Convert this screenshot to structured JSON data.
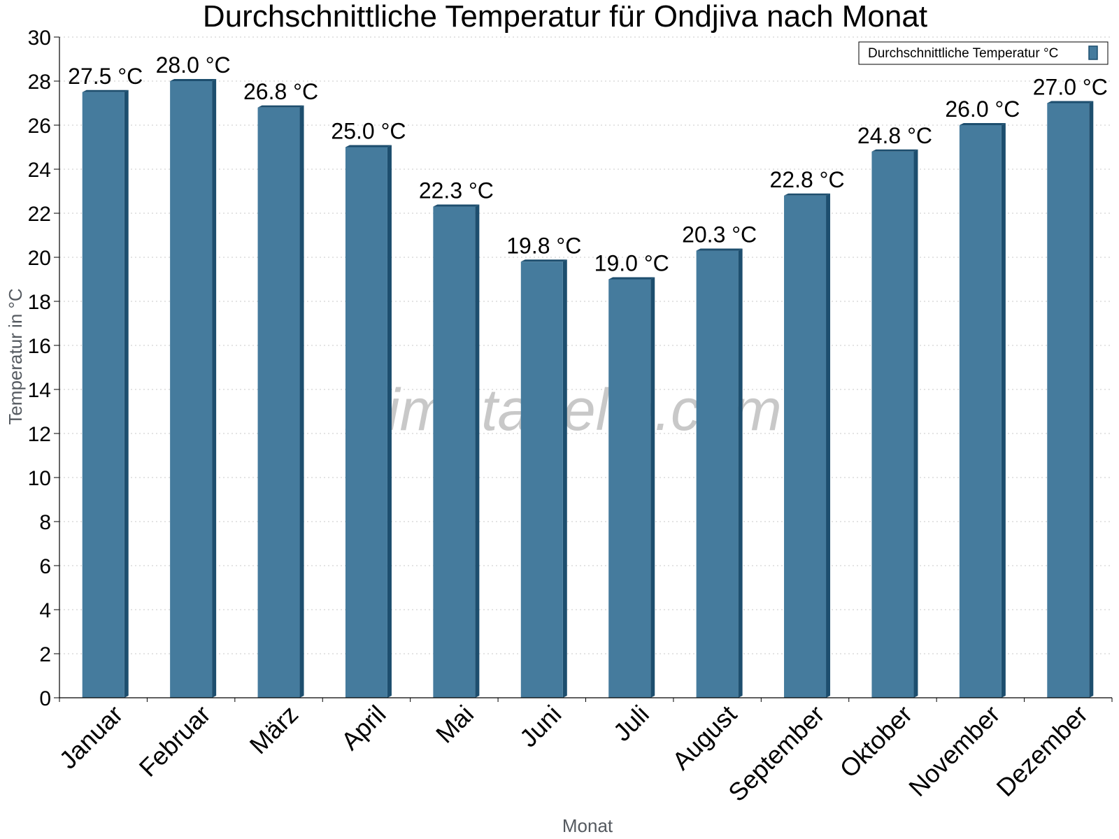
{
  "watermark": "klimatabelle.com",
  "colors": {
    "bar_front": "#457b9d",
    "bar_side": "#1d4e6e",
    "grid": "#c8c8c8",
    "axis": "#000000"
  },
  "chart_data": {
    "type": "bar",
    "title": "Durchschnittliche Temperatur für Ondjiva nach Monat",
    "xlabel": "Monat",
    "ylabel": "Temperatur in °C",
    "ylim": [
      0,
      30
    ],
    "ytick_step": 2,
    "grid": "horizontal dotted",
    "legend_position": "top-right",
    "categories": [
      "Januar",
      "Februar",
      "März",
      "April",
      "Mai",
      "Juni",
      "Juli",
      "August",
      "September",
      "Oktober",
      "November",
      "Dezember"
    ],
    "series": [
      {
        "name": "Durchschnittliche Temperatur °C",
        "values": [
          27.5,
          28.0,
          26.8,
          25.0,
          22.3,
          19.8,
          19.0,
          20.3,
          22.8,
          24.8,
          26.0,
          27.0
        ],
        "labels": [
          "27.5 °C",
          "28.0 °C",
          "26.8 °C",
          "25.0 °C",
          "22.3 °C",
          "19.8 °C",
          "19.0 °C",
          "20.3 °C",
          "22.8 °C",
          "24.8 °C",
          "26.0 °C",
          "27.0 °C"
        ]
      }
    ]
  }
}
